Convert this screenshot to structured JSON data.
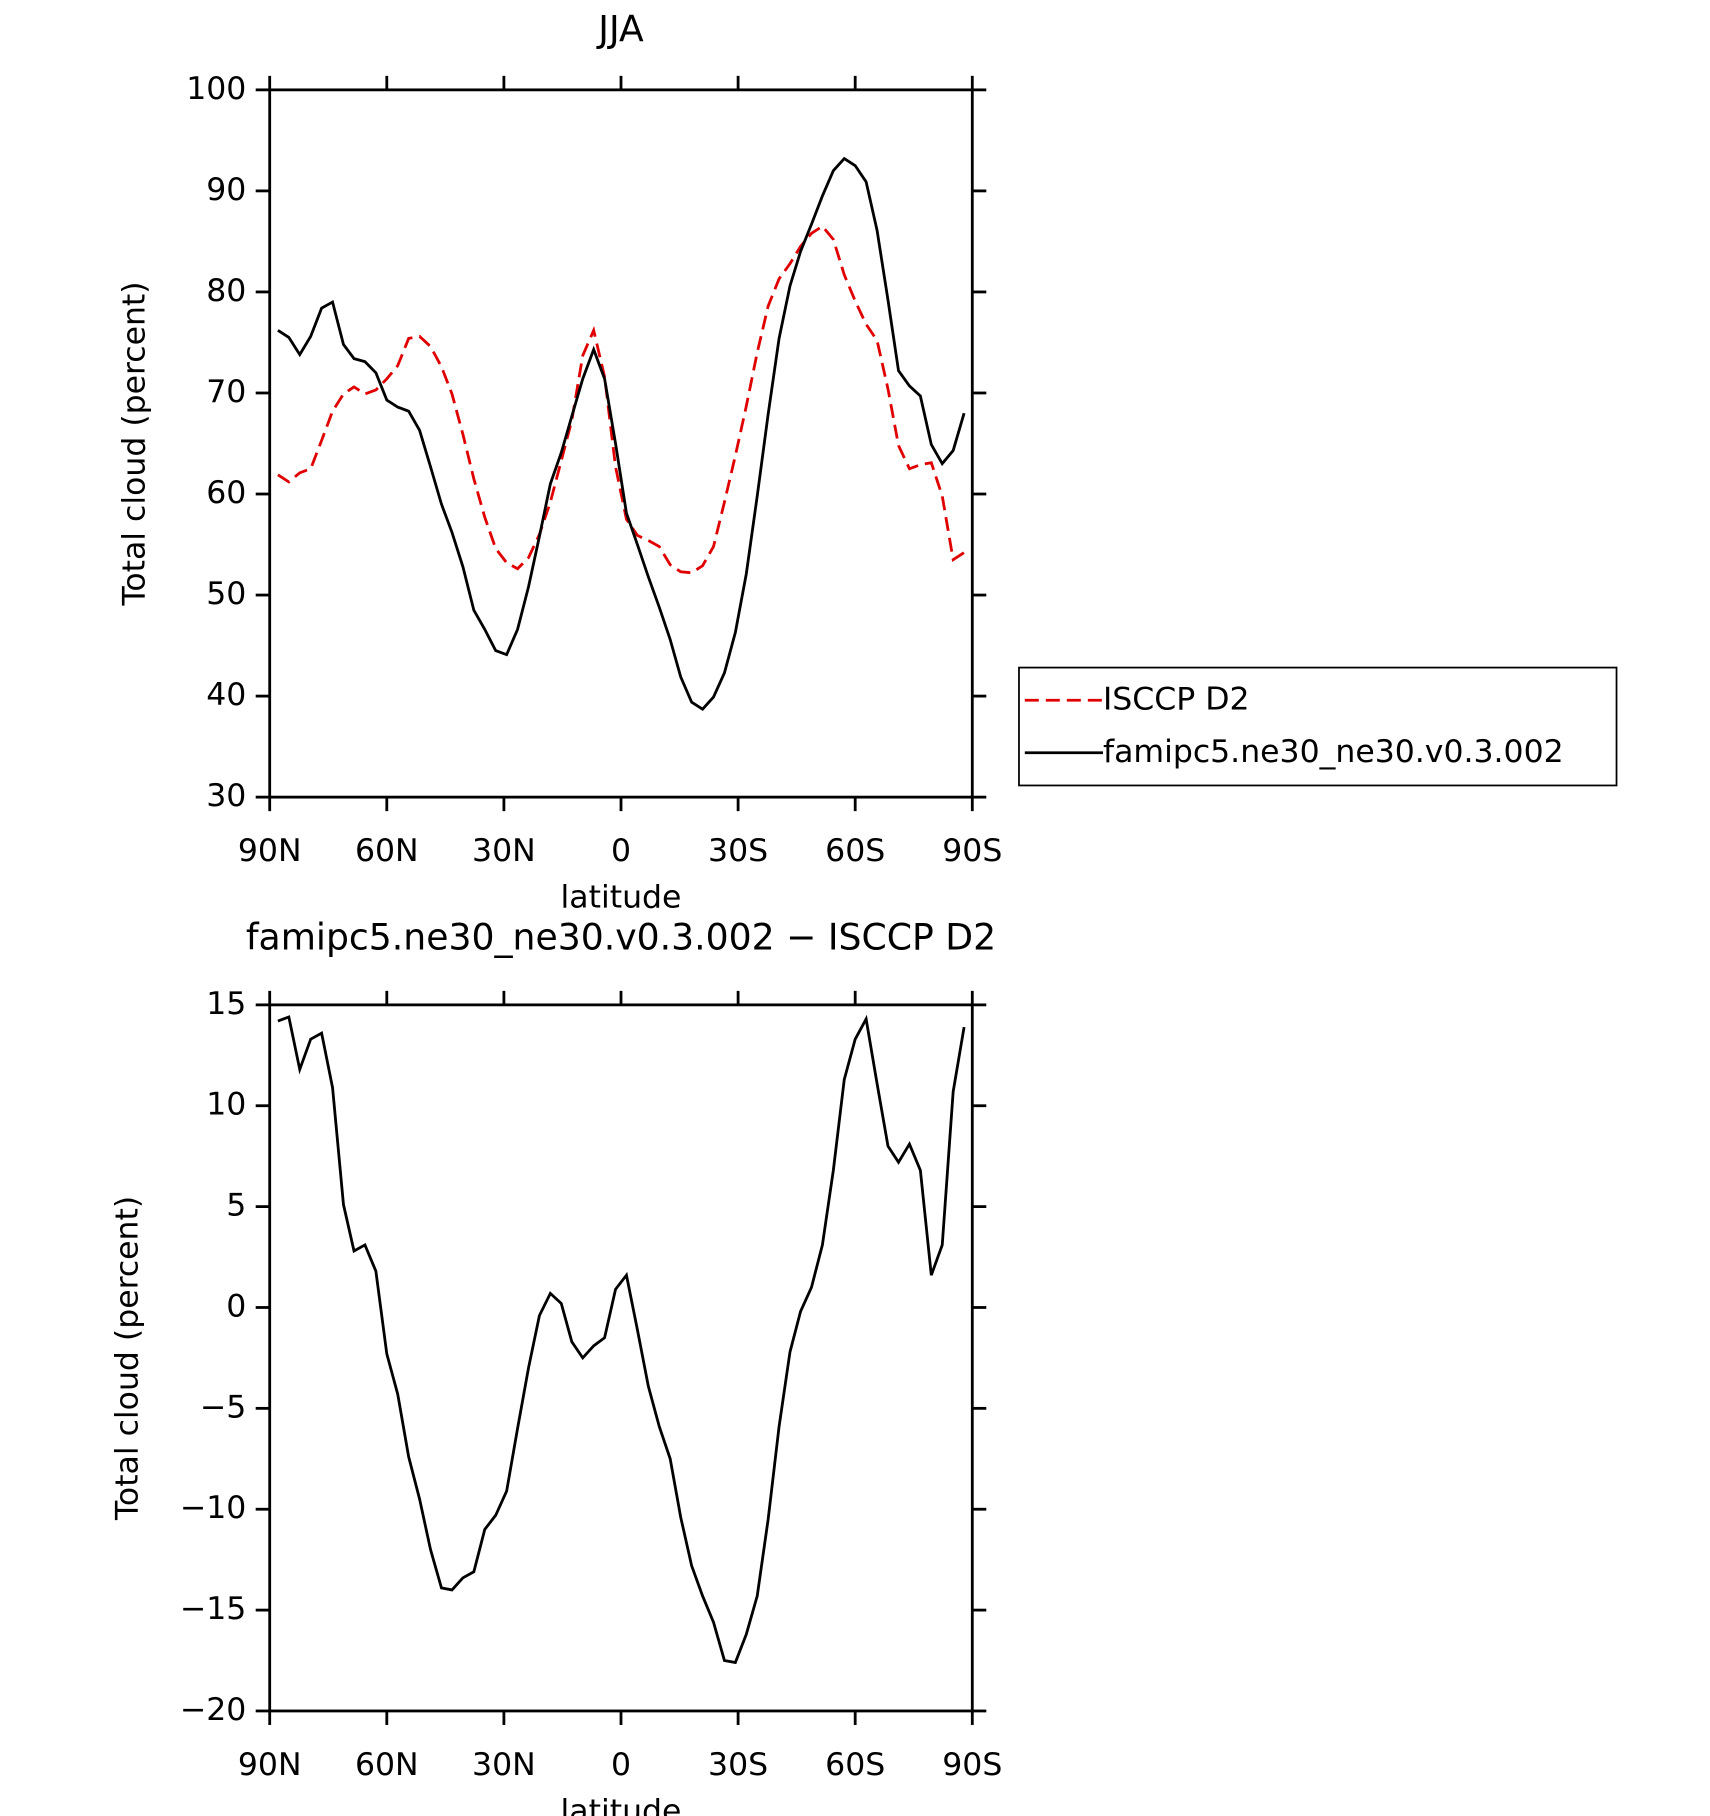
{
  "chart_data": [
    {
      "type": "line",
      "title": "JJA",
      "xlabel": "latitude",
      "ylabel": "Total cloud (percent)",
      "x": [
        87.9,
        85.1,
        82.3,
        79.5,
        76.7,
        73.9,
        71.1,
        68.4,
        65.6,
        62.8,
        60.0,
        57.2,
        54.4,
        51.6,
        48.8,
        46.0,
        43.3,
        40.5,
        37.7,
        34.9,
        32.1,
        29.3,
        26.5,
        23.7,
        20.9,
        18.1,
        15.3,
        12.6,
        9.8,
        7.0,
        4.2,
        1.4,
        -1.4,
        -4.2,
        -7.0,
        -9.8,
        -12.6,
        -15.3,
        -18.1,
        -20.9,
        -23.7,
        -26.5,
        -29.3,
        -32.1,
        -34.9,
        -37.7,
        -40.5,
        -43.3,
        -46.0,
        -48.8,
        -51.6,
        -54.4,
        -57.2,
        -60.0,
        -62.8,
        -65.6,
        -68.4,
        -71.1,
        -73.9,
        -76.7,
        -79.5,
        -82.3,
        -85.1,
        -87.9
      ],
      "series": [
        {
          "name": "ISCCP D2",
          "color": "#e00000",
          "dash": true,
          "values": [
            61.9,
            61.2,
            62.1,
            62.5,
            65.3,
            68.2,
            69.9,
            70.6,
            69.9,
            70.3,
            71.4,
            72.7,
            75.4,
            75.6,
            74.6,
            72.6,
            69.9,
            65.9,
            61.5,
            57.7,
            54.6,
            53.2,
            52.6,
            53.7,
            56,
            59.2,
            63.3,
            67.3,
            73.7,
            76.2,
            71.6,
            62.7,
            57.5,
            55.9,
            55.4,
            54.8,
            53,
            52.3,
            52.2,
            52.9,
            54.8,
            59.2,
            63.8,
            68.7,
            74,
            78.6,
            81.3,
            82.8,
            84.5,
            85.8,
            86.5,
            85.2,
            81.7,
            79.1,
            76.8,
            75.2,
            70.4,
            64.8,
            62.5,
            62.9,
            63.1,
            59.8,
            53.5,
            54.2
          ]
        },
        {
          "name": "famipc5.ne30_ne30.v0.3.002",
          "color": "#000000",
          "dash": false,
          "values": [
            76.2,
            75.5,
            73.8,
            75.6,
            78.4,
            79,
            74.8,
            73.4,
            73.1,
            72,
            69.3,
            68.6,
            68.2,
            66.3,
            62.7,
            59,
            56.2,
            52.8,
            48.5,
            46.6,
            44.5,
            44.1,
            46.6,
            50.8,
            55.8,
            61,
            64.1,
            67.7,
            71.4,
            74.3,
            71.4,
            65,
            58.1,
            55,
            51.8,
            48.8,
            45.6,
            41.9,
            39.4,
            38.7,
            39.9,
            42.3,
            46.3,
            52.1,
            59.8,
            67.9,
            75.4,
            80.6,
            84,
            86.7,
            89.5,
            92,
            93.2,
            92.5,
            90.9,
            86.1,
            79.2,
            72.2,
            70.7,
            69.7,
            64.9,
            63,
            64.3,
            68
          ]
        }
      ],
      "xlim": [
        90,
        -90
      ],
      "xticks": [
        {
          "value": 90,
          "label": "90N"
        },
        {
          "value": 60,
          "label": "60N"
        },
        {
          "value": 30,
          "label": "30N"
        },
        0,
        {
          "value": -30,
          "label": "30S"
        },
        {
          "value": -60,
          "label": "60S"
        },
        {
          "value": -90,
          "label": "90S"
        }
      ],
      "ylim": [
        30,
        100
      ],
      "yticks": [
        30,
        40,
        50,
        60,
        70,
        80,
        90,
        100
      ],
      "legend": "right"
    },
    {
      "type": "line",
      "title": "famipc5.ne30_ne30.v0.3.002 − ISCCP D2",
      "xlabel": "latitude",
      "ylabel": "Total cloud (percent)",
      "x": [
        87.9,
        85.1,
        82.3,
        79.5,
        76.7,
        73.9,
        71.1,
        68.4,
        65.6,
        62.8,
        60.0,
        57.2,
        54.4,
        51.6,
        48.8,
        46.0,
        43.3,
        40.5,
        37.7,
        34.9,
        32.1,
        29.3,
        26.5,
        23.7,
        20.9,
        18.1,
        15.3,
        12.6,
        9.8,
        7.0,
        4.2,
        1.4,
        -1.4,
        -4.2,
        -7.0,
        -9.8,
        -12.6,
        -15.3,
        -18.1,
        -20.9,
        -23.7,
        -26.5,
        -29.3,
        -32.1,
        -34.9,
        -37.7,
        -40.5,
        -43.3,
        -46.0,
        -48.8,
        -51.6,
        -54.4,
        -57.2,
        -60.0,
        -62.8,
        -65.6,
        -68.4,
        -71.1,
        -73.9,
        -76.7,
        -79.5,
        -82.3,
        -85.1,
        -87.9
      ],
      "series": [
        {
          "color": "#000000",
          "dash": false,
          "values": [
            14.2,
            14.4,
            11.8,
            13.3,
            13.6,
            10.9,
            5.1,
            2.8,
            3.1,
            1.8,
            -2.3,
            -4.3,
            -7.4,
            -9.5,
            -12,
            -13.9,
            -14,
            -13.4,
            -13.1,
            -11,
            -10.3,
            -9.1,
            -6,
            -3,
            -0.4,
            0.7,
            0.2,
            -1.7,
            -2.5,
            -1.9,
            -1.5,
            0.9,
            1.6,
            -1.1,
            -3.9,
            -5.9,
            -7.5,
            -10.4,
            -12.8,
            -14.3,
            -15.6,
            -17.5,
            -17.6,
            -16.2,
            -14.3,
            -10.5,
            -5.9,
            -2.2,
            -0.2,
            1,
            3.1,
            6.8,
            11.3,
            13.3,
            14.3,
            11.1,
            8,
            7.2,
            8.1,
            6.8,
            1.6,
            3.1,
            10.7,
            13.9
          ]
        }
      ],
      "xlim": [
        90,
        -90
      ],
      "xticks": [
        {
          "value": 90,
          "label": "90N"
        },
        {
          "value": 60,
          "label": "60N"
        },
        {
          "value": 30,
          "label": "30N"
        },
        0,
        {
          "value": -30,
          "label": "30S"
        },
        {
          "value": -60,
          "label": "60S"
        },
        {
          "value": -90,
          "label": "90S"
        }
      ],
      "ylim": [
        -20,
        15
      ],
      "yticks": [
        {
          "value": -20,
          "label": "−20"
        },
        {
          "value": -15,
          "label": "−15"
        },
        {
          "value": -10,
          "label": "−10"
        },
        {
          "value": -5,
          "label": "−5"
        },
        0,
        5,
        10,
        15
      ]
    }
  ]
}
